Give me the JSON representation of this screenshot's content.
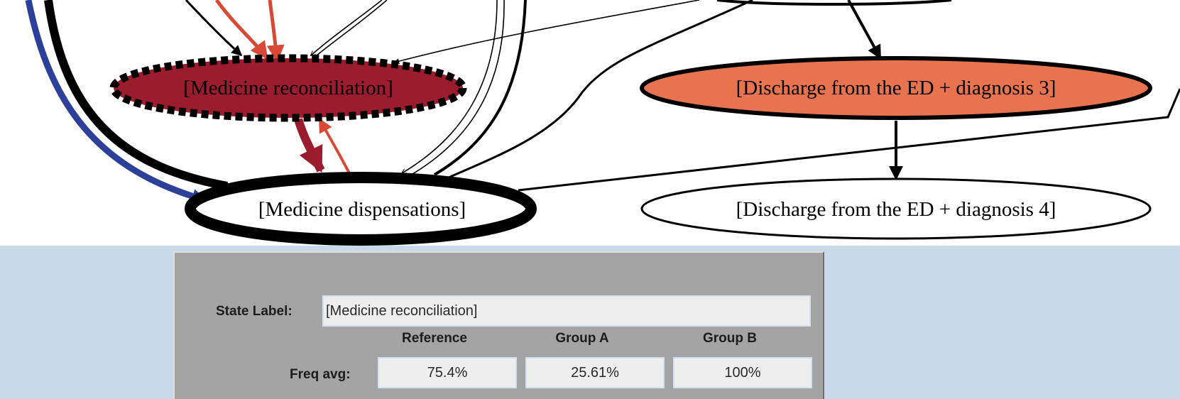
{
  "graph": {
    "nodes": {
      "medicine_reconciliation": "[Medicine reconciliation]",
      "discharge_diagnosis_3": "[Discharge from the ED + diagnosis 3]",
      "medicine_dispensations": "[Medicine dispensations]",
      "discharge_diagnosis_4": "[Discharge from the ED + diagnosis 4]"
    },
    "colors": {
      "reconciliation_fill": "#9b1c2c",
      "discharge3_fill": "#e8734f",
      "red_edge": "#d84a36",
      "dark_red_edge": "#9b1c2c",
      "blue_edge": "#2c3f99",
      "panel_bg": "#a4a4a4",
      "area_bg": "#c9d9ea"
    }
  },
  "panel": {
    "state_label_caption": "State Label:",
    "state_label_value": "[Medicine reconciliation]",
    "columns": [
      "Reference",
      "Group A",
      "Group B"
    ],
    "freq_avg_caption": "Freq avg:",
    "freq_avg_values": [
      "75.4%",
      "25.61%",
      "100%"
    ]
  }
}
